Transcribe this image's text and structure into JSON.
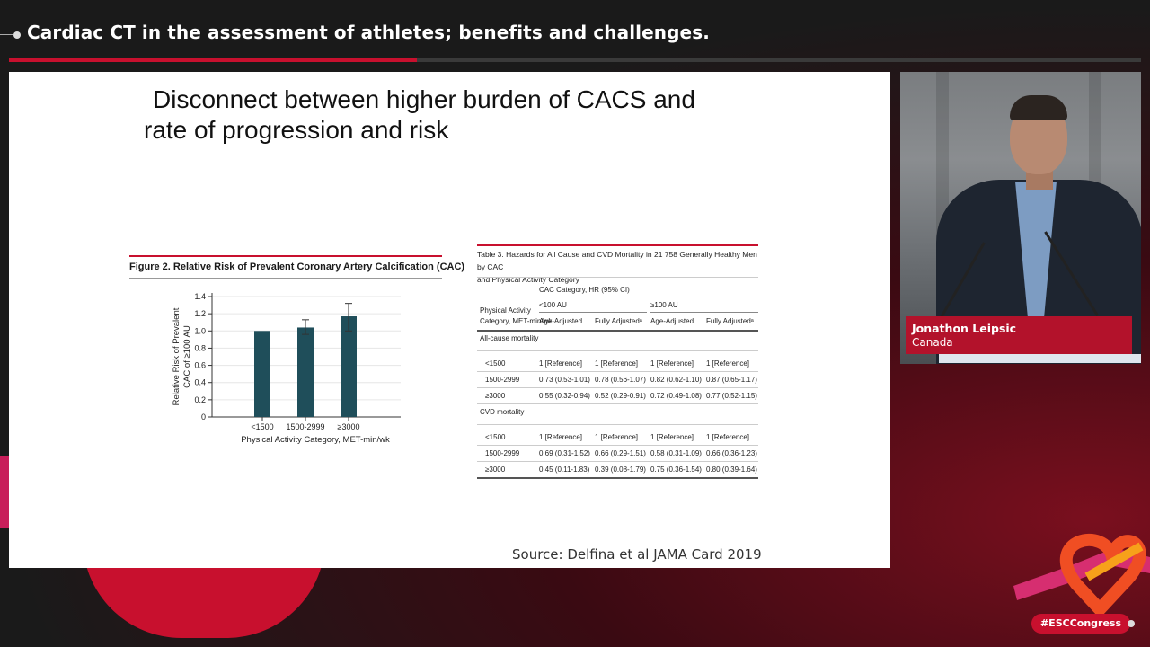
{
  "header": {
    "title": "Cardiac CT in the assessment of athletes; benefits and challenges."
  },
  "progress": {
    "fraction": 0.36
  },
  "slide": {
    "title_line1": "Disconnect between higher burden of CACS and",
    "title_line2": "rate of progression and risk",
    "source": "Source: Delfina et al JAMA Card 2019"
  },
  "figure": {
    "title": "Figure 2. Relative Risk of Prevalent Coronary Artery Calcification (CAC)"
  },
  "chart_data": {
    "type": "bar",
    "title": "Figure 2. Relative Risk of Prevalent Coronary Artery Calcification (CAC)",
    "categories": [
      "<1500",
      "1500-2999",
      "≥3000"
    ],
    "values": [
      1.0,
      1.04,
      1.17
    ],
    "error_low": [
      1.0,
      0.96,
      1.0
    ],
    "error_high": [
      1.0,
      1.13,
      1.32
    ],
    "xlabel": "Physical Activity Category, MET-min/wk",
    "ylabel_line1": "Relative Risk of Prevalent",
    "ylabel_line2": "CAC of ≥100 AU",
    "ylim": [
      0,
      1.4
    ],
    "yticks": [
      "0",
      "0.2",
      "0.4",
      "0.6",
      "0.8",
      "1.0",
      "1.2",
      "1.4"
    ],
    "bar_color": "#1f4e5a"
  },
  "table": {
    "caption_line1": "Table 3. Hazards for All Cause and CVD Mortality in 21 758 Generally Healthy Men by CAC",
    "caption_line2": "and Physical Activity Category",
    "group_header": "CAC Category, HR (95% CI)",
    "sub1": "<100 AU",
    "sub2": "≥100 AU",
    "rowhead_line1": "Physical Activity",
    "rowhead_line2": "Category, MET-min/wk",
    "cols": [
      "Age-Adjusted",
      "Fully Adjustedᵃ",
      "Age-Adjusted",
      "Fully Adjustedᵃ"
    ],
    "section1": "All-cause mortality",
    "section2": "CVD mortality",
    "rows1": [
      {
        "label": "<1500",
        "c1": "1 [Reference]",
        "c2": "1 [Reference]",
        "c3": "1 [Reference]",
        "c4": "1 [Reference]"
      },
      {
        "label": "1500-2999",
        "c1": "0.73 (0.53-1.01)",
        "c2": "0.78 (0.56-1.07)",
        "c3": "0.82 (0.62-1.10)",
        "c4": "0.87 (0.65-1.17)"
      },
      {
        "label": "≥3000",
        "c1": "0.55 (0.32-0.94)",
        "c2": "0.52 (0.29-0.91)",
        "c3": "0.72 (0.49-1.08)",
        "c4": "0.77 (0.52-1.15)"
      }
    ],
    "rows2": [
      {
        "label": "<1500",
        "c1": "1 [Reference]",
        "c2": "1 [Reference]",
        "c3": "1 [Reference]",
        "c4": "1 [Reference]"
      },
      {
        "label": "1500-2999",
        "c1": "0.69 (0.31-1.52)",
        "c2": "0.66 (0.29-1.51)",
        "c3": "0.58 (0.31-1.09)",
        "c4": "0.66 (0.36-1.23)"
      },
      {
        "label": "≥3000",
        "c1": "0.45 (0.11-1.83)",
        "c2": "0.39 (0.08-1.79)",
        "c3": "0.75 (0.36-1.54)",
        "c4": "0.80 (0.39-1.64)"
      }
    ]
  },
  "presenter": {
    "name": "Jonathon Leipsic",
    "country": "Canada"
  },
  "branding": {
    "hashtag": "#ESCCongress",
    "accent": "#c8102e"
  }
}
